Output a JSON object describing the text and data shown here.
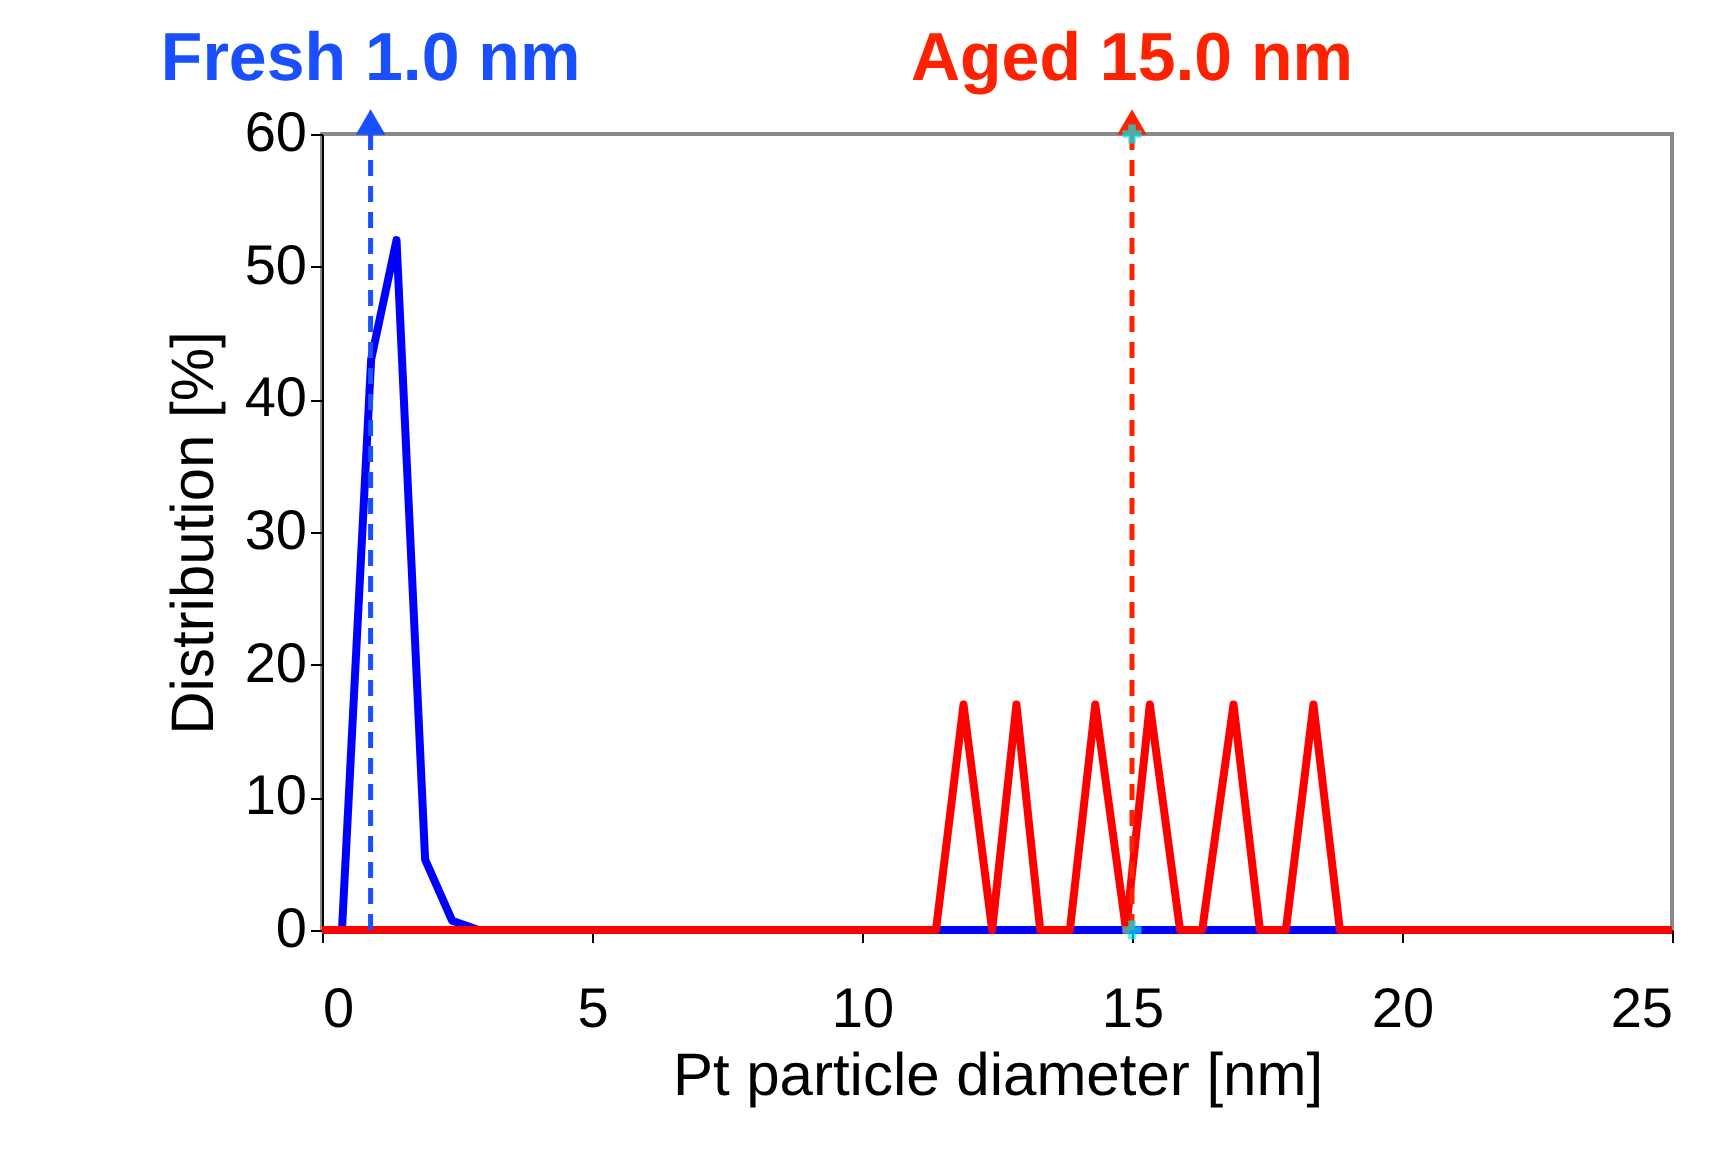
{
  "chart_data": {
    "type": "line",
    "xlabel": "Pt particle diameter [nm]",
    "ylabel": "Distribution [%]",
    "xlim": [
      0,
      25
    ],
    "xticks": [
      0,
      5,
      10,
      15,
      20,
      25
    ],
    "ylim": [
      0,
      60
    ],
    "yticks": [
      0,
      10,
      20,
      30,
      40,
      50,
      60
    ],
    "grid": false,
    "marker": "none",
    "line_style": "solid",
    "series": [
      {
        "color": "#0000ff",
        "x": [
          0,
          0.37,
          0.91,
          1.38,
          1.91,
          2.41,
          2.9,
          25
        ],
        "values": [
          0,
          0,
          43,
          52,
          5.3,
          0.7,
          0,
          0
        ]
      },
      {
        "color": "#ff0000",
        "x": [
          0,
          11.37,
          11.88,
          12.41,
          12.86,
          13.3,
          13.85,
          14.32,
          14.89,
          15.33,
          15.89,
          16.3,
          16.88,
          17.37,
          17.85,
          18.36,
          18.85,
          25
        ],
        "values": [
          0,
          0,
          17,
          0,
          17,
          0,
          0,
          17,
          0,
          17,
          0,
          0,
          17,
          0,
          0,
          17,
          0,
          0
        ]
      },
      {
        "type": "scatter",
        "marker": "cross",
        "color": "#00e5ee",
        "x": [
          15,
          15
        ],
        "values": [
          60,
          0
        ]
      }
    ],
    "ref_lines": [
      {
        "axis": "x",
        "value": 0.9,
        "label": "Fresh 1.0 nm",
        "color": "#1a4fff",
        "line_style": "dashed"
      },
      {
        "axis": "x",
        "value": 15.0,
        "label": "Aged 15.0 nm",
        "color": "#ff2200",
        "line_style": "dashed"
      }
    ]
  }
}
